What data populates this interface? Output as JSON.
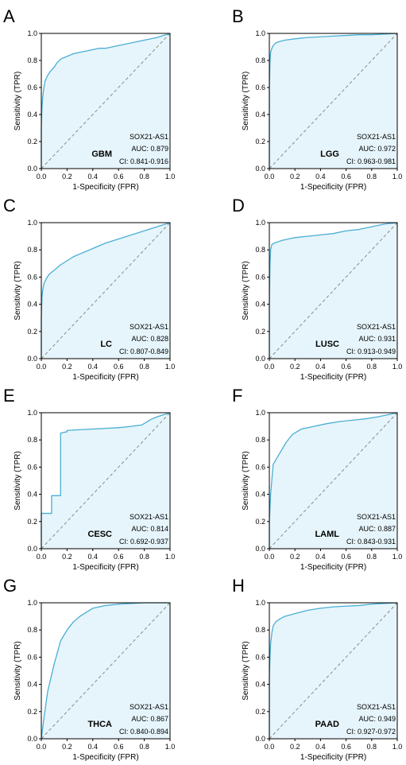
{
  "chart_data": [
    {
      "panel": "A",
      "type": "line",
      "cohort": "GBM",
      "gene": "SOX21-AS1",
      "auc": "AUC: 0.879",
      "ci": "CI: 0.841-0.916",
      "xlabel": "1-Specificity (FPR)",
      "ylabel": "Sensitivity (TPR)",
      "xlim": [
        0,
        1
      ],
      "ylim": [
        0,
        1
      ],
      "x": [
        0,
        0,
        0.005,
        0.01,
        0.02,
        0.03,
        0.05,
        0.07,
        0.1,
        0.12,
        0.15,
        0.2,
        0.25,
        0.3,
        0.35,
        0.4,
        0.45,
        0.5,
        0.6,
        0.7,
        0.8,
        0.9,
        1.0
      ],
      "y": [
        0,
        0.3,
        0.45,
        0.52,
        0.6,
        0.65,
        0.69,
        0.72,
        0.75,
        0.78,
        0.81,
        0.83,
        0.85,
        0.86,
        0.87,
        0.88,
        0.89,
        0.89,
        0.91,
        0.93,
        0.95,
        0.97,
        1.0
      ]
    },
    {
      "panel": "B",
      "type": "line",
      "cohort": "LGG",
      "gene": "SOX21-AS1",
      "auc": "AUC: 0.972",
      "ci": "CI: 0.963-0.981",
      "xlabel": "1-Specificity (FPR)",
      "ylabel": "Sensitivity (TPR)",
      "xlim": [
        0,
        1
      ],
      "ylim": [
        0,
        1
      ],
      "x": [
        0,
        0,
        0.005,
        0.01,
        0.02,
        0.03,
        0.05,
        0.08,
        0.12,
        0.2,
        0.3,
        0.4,
        0.5,
        0.6,
        0.7,
        0.8,
        0.9,
        1.0
      ],
      "y": [
        0,
        0.6,
        0.8,
        0.86,
        0.89,
        0.91,
        0.93,
        0.94,
        0.95,
        0.96,
        0.97,
        0.975,
        0.98,
        0.985,
        0.99,
        0.99,
        0.995,
        1.0
      ]
    },
    {
      "panel": "C",
      "type": "line",
      "cohort": "LC",
      "gene": "SOX21-AS1",
      "auc": "AUC: 0.828",
      "ci": "CI: 0.807-0.849",
      "xlabel": "1-Specificity (FPR)",
      "ylabel": "Sensitivity (TPR)",
      "xlim": [
        0,
        1
      ],
      "ylim": [
        0,
        1
      ],
      "x": [
        0,
        0,
        0.005,
        0.01,
        0.02,
        0.04,
        0.06,
        0.1,
        0.15,
        0.2,
        0.25,
        0.3,
        0.4,
        0.5,
        0.6,
        0.7,
        0.8,
        0.9,
        1.0
      ],
      "y": [
        0,
        0.3,
        0.45,
        0.5,
        0.55,
        0.59,
        0.62,
        0.65,
        0.69,
        0.72,
        0.75,
        0.77,
        0.81,
        0.85,
        0.88,
        0.91,
        0.94,
        0.97,
        1.0
      ]
    },
    {
      "panel": "D",
      "type": "line",
      "cohort": "LUSC",
      "gene": "SOX21-AS1",
      "auc": "AUC: 0.931",
      "ci": "CI: 0.913-0.949",
      "xlabel": "1-Specificity (FPR)",
      "ylabel": "Sensitivity (TPR)",
      "xlim": [
        0,
        1
      ],
      "ylim": [
        0,
        1
      ],
      "x": [
        0,
        0,
        0.005,
        0.01,
        0.02,
        0.04,
        0.07,
        0.1,
        0.15,
        0.2,
        0.3,
        0.4,
        0.5,
        0.6,
        0.7,
        0.8,
        0.9,
        1.0
      ],
      "y": [
        0,
        0.4,
        0.7,
        0.8,
        0.84,
        0.85,
        0.86,
        0.87,
        0.88,
        0.89,
        0.9,
        0.91,
        0.92,
        0.94,
        0.95,
        0.97,
        0.99,
        1.0
      ]
    },
    {
      "panel": "E",
      "type": "line",
      "cohort": "CESC",
      "gene": "SOX21-AS1",
      "auc": "AUC: 0.814",
      "ci": "CI: 0.692-0.937",
      "xlabel": "1-Specificity (FPR)",
      "ylabel": "Sensitivity (TPR)",
      "xlim": [
        0,
        1
      ],
      "ylim": [
        0,
        1
      ],
      "x": [
        0,
        0,
        0.08,
        0.08,
        0.15,
        0.15,
        0.2,
        0.2,
        0.3,
        0.4,
        0.5,
        0.6,
        0.7,
        0.78,
        0.85,
        0.9,
        1.0
      ],
      "y": [
        0,
        0.26,
        0.26,
        0.39,
        0.39,
        0.85,
        0.86,
        0.87,
        0.875,
        0.88,
        0.885,
        0.89,
        0.9,
        0.91,
        0.95,
        0.97,
        1.0
      ]
    },
    {
      "panel": "F",
      "type": "line",
      "cohort": "LAML",
      "gene": "SOX21-AS1",
      "auc": "AUC: 0.887",
      "ci": "CI: 0.843-0.931",
      "xlabel": "1-Specificity (FPR)",
      "ylabel": "Sensitivity (TPR)",
      "xlim": [
        0,
        1
      ],
      "ylim": [
        0,
        1
      ],
      "x": [
        0,
        0,
        0.01,
        0.03,
        0.08,
        0.13,
        0.18,
        0.25,
        0.35,
        0.45,
        0.55,
        0.65,
        0.75,
        0.85,
        0.95,
        1.0
      ],
      "y": [
        0,
        0.2,
        0.4,
        0.62,
        0.7,
        0.78,
        0.84,
        0.88,
        0.9,
        0.92,
        0.935,
        0.945,
        0.955,
        0.97,
        0.99,
        1.0
      ]
    },
    {
      "panel": "G",
      "type": "line",
      "cohort": "THCA",
      "gene": "SOX21-AS1",
      "auc": "AUC: 0.867",
      "ci": "CI: 0.840-0.894",
      "xlabel": "1-Specificity (FPR)",
      "ylabel": "Sensitivity (TPR)",
      "xlim": [
        0,
        1
      ],
      "ylim": [
        0,
        1
      ],
      "x": [
        0,
        0.02,
        0.05,
        0.1,
        0.15,
        0.2,
        0.25,
        0.3,
        0.35,
        0.4,
        0.5,
        0.6,
        0.7,
        0.8,
        0.9,
        1.0
      ],
      "y": [
        0,
        0.15,
        0.35,
        0.55,
        0.72,
        0.8,
        0.86,
        0.9,
        0.93,
        0.96,
        0.98,
        0.99,
        0.995,
        1.0,
        1.0,
        1.0
      ]
    },
    {
      "panel": "H",
      "type": "line",
      "cohort": "PAAD",
      "gene": "SOX21-AS1",
      "auc": "AUC: 0.949",
      "ci": "CI: 0.927-0.972",
      "xlabel": "1-Specificity (FPR)",
      "ylabel": "Sensitivity (TPR)",
      "xlim": [
        0,
        1
      ],
      "ylim": [
        0,
        1
      ],
      "x": [
        0,
        0,
        0.005,
        0.01,
        0.02,
        0.03,
        0.05,
        0.08,
        0.12,
        0.2,
        0.3,
        0.4,
        0.5,
        0.6,
        0.7,
        0.8,
        0.9,
        1.0
      ],
      "y": [
        0,
        0.45,
        0.6,
        0.7,
        0.78,
        0.83,
        0.86,
        0.88,
        0.9,
        0.92,
        0.945,
        0.96,
        0.97,
        0.975,
        0.98,
        0.99,
        0.995,
        1.0
      ]
    }
  ],
  "ticks": [
    "0.0",
    "0.2",
    "0.4",
    "0.6",
    "0.8",
    "1.0"
  ],
  "colors": {
    "roc_line": "#4aaed4",
    "roc_fill": "#e6f5fb",
    "diagonal": "#8a8a8a",
    "axis": "#000000"
  }
}
